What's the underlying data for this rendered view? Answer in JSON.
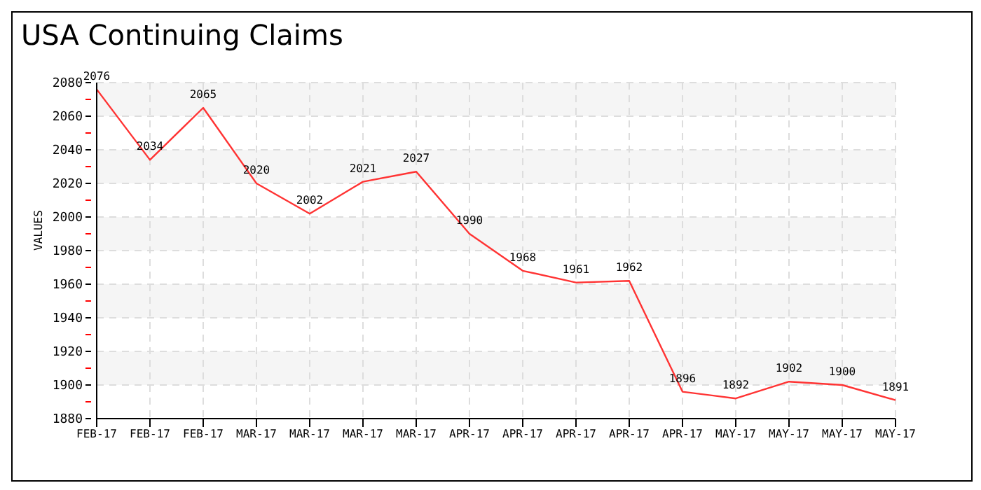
{
  "chart_data": {
    "type": "line",
    "title": "USA Continuing Claims",
    "ylabel": "VALUES",
    "categories": [
      "FEB-17",
      "FEB-17",
      "FEB-17",
      "MAR-17",
      "MAR-17",
      "MAR-17",
      "MAR-17",
      "APR-17",
      "APR-17",
      "APR-17",
      "APR-17",
      "APR-17",
      "MAY-17",
      "MAY-17",
      "MAY-17",
      "MAY-17"
    ],
    "series": [
      {
        "color": "#ff3333",
        "values": [
          2076,
          2034,
          2065,
          2020,
          2002,
          2021,
          2027,
          1990,
          1968,
          1961,
          1962,
          1896,
          1892,
          1902,
          1900,
          1891
        ]
      }
    ],
    "ylim": [
      1880,
      2080
    ],
    "yticks": [
      1880,
      {
        "value": 1890,
        "label": null
      },
      1900,
      {
        "value": 1910,
        "label": null
      },
      1920,
      {
        "value": 1930,
        "label": null
      },
      1940,
      {
        "value": 1950,
        "label": null
      },
      1960,
      {
        "value": 1970,
        "label": null
      },
      1980,
      {
        "value": 1990,
        "label": null
      },
      2000,
      {
        "value": 2010,
        "label": null
      },
      2020,
      {
        "value": 2030,
        "label": null
      },
      2040,
      {
        "value": 2050,
        "label": null
      },
      2060,
      {
        "value": 2070,
        "label": null
      },
      2080
    ],
    "grid": true,
    "data_labels": true,
    "marker": "none",
    "line_style": "solid",
    "legend": false
  }
}
